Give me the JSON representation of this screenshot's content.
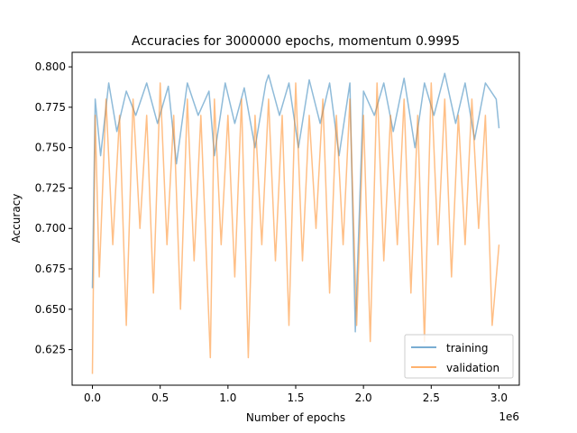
{
  "chart_data": {
    "type": "line",
    "title": "Accuracies for 3000000 epochs, momentum 0.9995",
    "xlabel": "Number of epochs",
    "ylabel": "Accuracy",
    "x_multiplier_label": "1e6",
    "xlim": [
      -150000,
      3150000
    ],
    "ylim": [
      0.603,
      0.809
    ],
    "x_ticks": [
      0,
      500000,
      1000000,
      1500000,
      2000000,
      2500000,
      3000000
    ],
    "x_tick_labels": [
      "0.0",
      "0.5",
      "1.0",
      "1.5",
      "2.0",
      "2.5",
      "3.0"
    ],
    "y_ticks": [
      0.625,
      0.65,
      0.675,
      0.7,
      0.725,
      0.75,
      0.775,
      0.8
    ],
    "y_tick_labels": [
      "0.625",
      "0.650",
      "0.675",
      "0.700",
      "0.725",
      "0.750",
      "0.775",
      "0.800"
    ],
    "grid": false,
    "legend_position": "lower-right",
    "series": [
      {
        "name": "training",
        "color": "#1f77b4",
        "alpha": 0.5,
        "x": [
          0,
          20000,
          60000,
          120000,
          180000,
          250000,
          320000,
          400000,
          480000,
          560000,
          620000,
          700000,
          780000,
          860000,
          900000,
          980000,
          1050000,
          1120000,
          1200000,
          1280000,
          1300000,
          1380000,
          1450000,
          1520000,
          1600000,
          1680000,
          1750000,
          1820000,
          1900000,
          1940000,
          2000000,
          2080000,
          2150000,
          2220000,
          2300000,
          2380000,
          2450000,
          2520000,
          2600000,
          2680000,
          2750000,
          2820000,
          2900000,
          2980000,
          3000000
        ],
        "y": [
          0.663,
          0.78,
          0.745,
          0.79,
          0.76,
          0.785,
          0.77,
          0.79,
          0.765,
          0.788,
          0.74,
          0.79,
          0.77,
          0.785,
          0.745,
          0.79,
          0.765,
          0.787,
          0.75,
          0.79,
          0.795,
          0.77,
          0.79,
          0.75,
          0.792,
          0.765,
          0.79,
          0.745,
          0.79,
          0.636,
          0.785,
          0.77,
          0.79,
          0.76,
          0.793,
          0.75,
          0.79,
          0.77,
          0.796,
          0.765,
          0.79,
          0.755,
          0.79,
          0.78,
          0.762
        ]
      },
      {
        "name": "validation",
        "color": "#ff7f0e",
        "alpha": 0.5,
        "x": [
          0,
          20000,
          50000,
          100000,
          150000,
          200000,
          250000,
          300000,
          350000,
          400000,
          450000,
          500000,
          550000,
          600000,
          650000,
          700000,
          750000,
          800000,
          870000,
          900000,
          950000,
          1000000,
          1050000,
          1100000,
          1150000,
          1200000,
          1250000,
          1300000,
          1350000,
          1400000,
          1450000,
          1500000,
          1550000,
          1600000,
          1650000,
          1700000,
          1750000,
          1800000,
          1850000,
          1900000,
          1950000,
          2000000,
          2050000,
          2100000,
          2150000,
          2200000,
          2250000,
          2300000,
          2350000,
          2400000,
          2450000,
          2500000,
          2550000,
          2600000,
          2650000,
          2700000,
          2750000,
          2800000,
          2850000,
          2900000,
          2950000,
          3000000
        ],
        "y": [
          0.61,
          0.77,
          0.67,
          0.78,
          0.69,
          0.77,
          0.64,
          0.78,
          0.7,
          0.77,
          0.66,
          0.79,
          0.69,
          0.77,
          0.65,
          0.78,
          0.68,
          0.77,
          0.62,
          0.78,
          0.69,
          0.77,
          0.67,
          0.78,
          0.62,
          0.77,
          0.69,
          0.78,
          0.68,
          0.77,
          0.64,
          0.79,
          0.68,
          0.77,
          0.7,
          0.78,
          0.66,
          0.77,
          0.69,
          0.78,
          0.64,
          0.77,
          0.63,
          0.79,
          0.68,
          0.77,
          0.69,
          0.78,
          0.66,
          0.77,
          0.63,
          0.79,
          0.69,
          0.78,
          0.67,
          0.77,
          0.69,
          0.78,
          0.7,
          0.77,
          0.64,
          0.69
        ]
      }
    ]
  }
}
